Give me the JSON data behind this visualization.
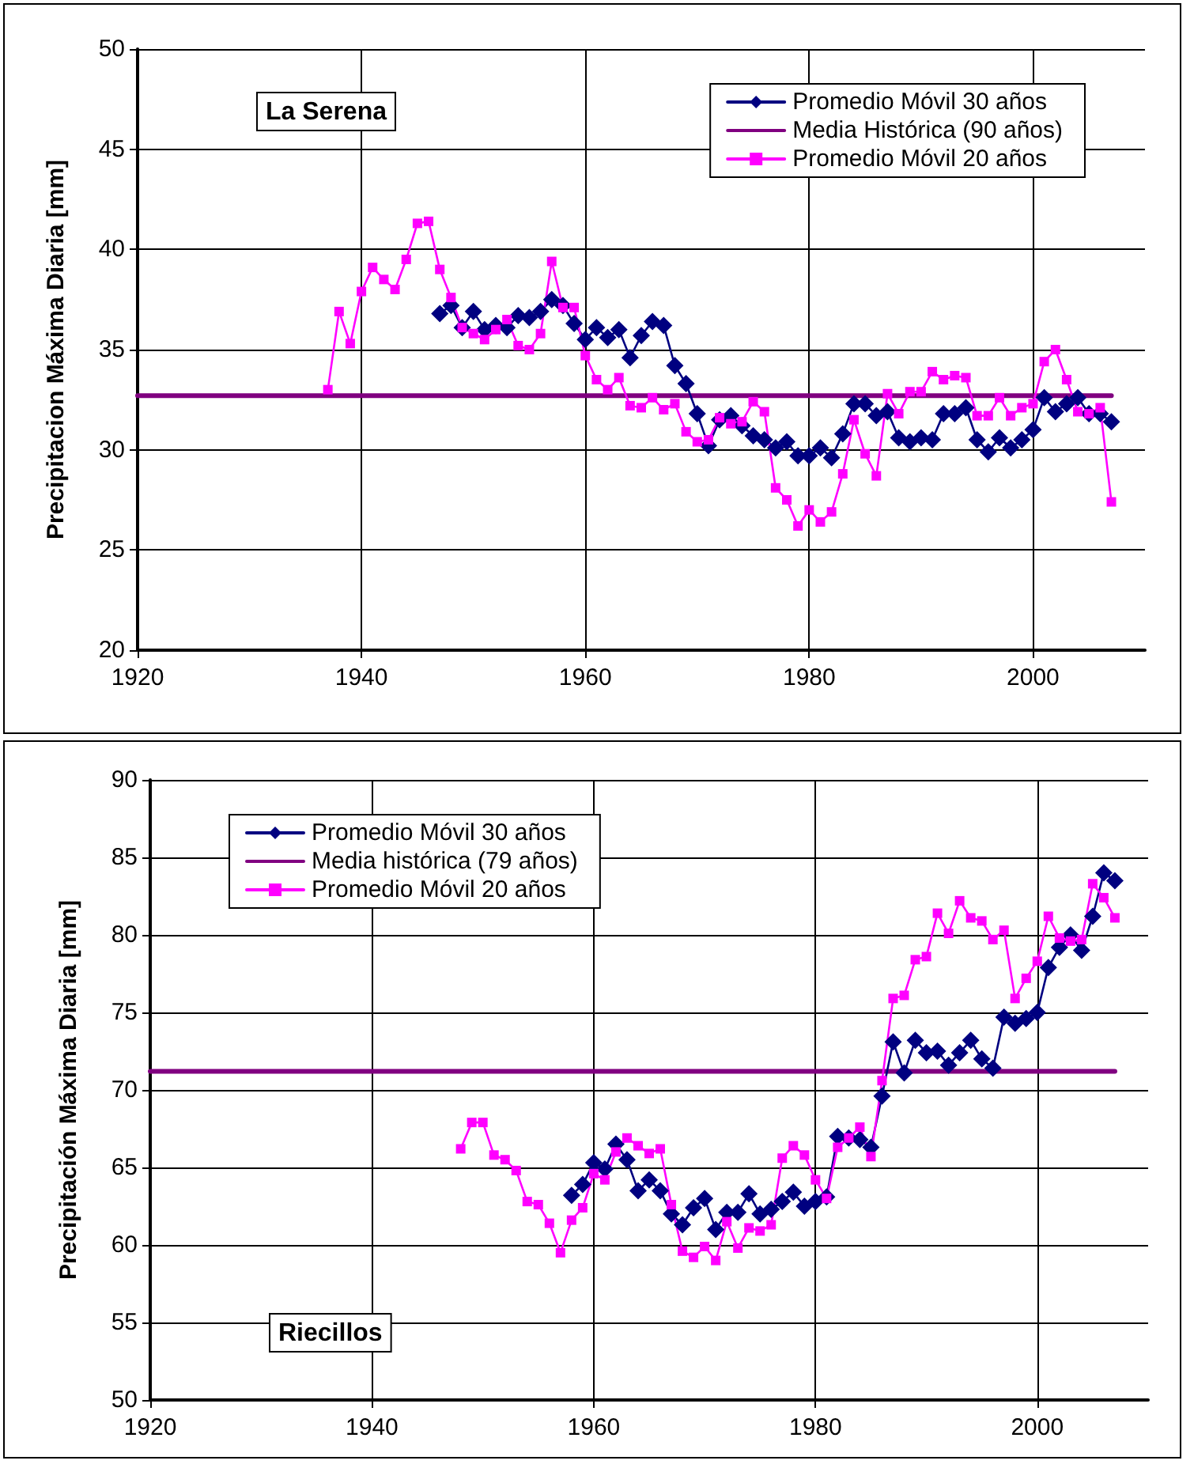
{
  "chart_data": [
    {
      "type": "line",
      "ylabel": "Precipitacion Máxima Diaria [mm]",
      "annotations": [
        "La Serena"
      ],
      "xlim": [
        1920,
        2010
      ],
      "xticks": [
        1920,
        1940,
        1960,
        1980,
        2000
      ],
      "ylim": [
        20,
        50
      ],
      "yticks": [
        20,
        25,
        30,
        35,
        40,
        45,
        50
      ],
      "grid": true,
      "legend": "top right",
      "series": [
        {
          "name": "Promedio Móvil 30 años",
          "color": "#000080",
          "marker": "diamond",
          "x": [
            1947,
            1948,
            1949,
            1950,
            1951,
            1952,
            1953,
            1954,
            1955,
            1956,
            1957,
            1958,
            1959,
            1960,
            1961,
            1962,
            1963,
            1964,
            1965,
            1966,
            1967,
            1968,
            1969,
            1970,
            1971,
            1972,
            1973,
            1974,
            1975,
            1976,
            1977,
            1978,
            1979,
            1980,
            1981,
            1982,
            1983,
            1984,
            1985,
            1986,
            1987,
            1988,
            1989,
            1990,
            1991,
            1992,
            1993,
            1994,
            1995,
            1996,
            1997,
            1998,
            1999,
            2000,
            2001,
            2002,
            2003,
            2004,
            2005,
            2006,
            2007
          ],
          "values": [
            36.8,
            37.2,
            36.1,
            36.9,
            36.0,
            36.2,
            36.1,
            36.7,
            36.6,
            36.9,
            37.5,
            37.2,
            36.3,
            35.5,
            36.1,
            35.6,
            36.0,
            34.6,
            35.7,
            36.4,
            36.2,
            34.2,
            33.3,
            31.8,
            30.2,
            31.5,
            31.7,
            31.2,
            30.7,
            30.5,
            30.1,
            30.4,
            29.7,
            29.7,
            30.1,
            29.6,
            30.8,
            32.3,
            32.3,
            31.7,
            31.9,
            30.6,
            30.4,
            30.6,
            30.5,
            31.8,
            31.8,
            32.1,
            30.5,
            29.9,
            30.6,
            30.1,
            30.5,
            31.0,
            32.6,
            31.9,
            32.3,
            32.6,
            31.8,
            31.8,
            31.4
          ]
        },
        {
          "name": "Media Histórica (90 años)",
          "color": "#800080",
          "marker": "none",
          "x": [
            1920,
            2007
          ],
          "values": [
            32.7,
            32.7
          ]
        },
        {
          "name": "Promedio Móvil 20 años",
          "color": "#ff00ff",
          "marker": "square",
          "x": [
            1937,
            1938,
            1939,
            1940,
            1941,
            1942,
            1943,
            1944,
            1945,
            1946,
            1947,
            1948,
            1949,
            1950,
            1951,
            1952,
            1953,
            1954,
            1955,
            1956,
            1957,
            1958,
            1959,
            1960,
            1961,
            1962,
            1963,
            1964,
            1965,
            1966,
            1967,
            1968,
            1969,
            1970,
            1971,
            1972,
            1973,
            1974,
            1975,
            1976,
            1977,
            1978,
            1979,
            1980,
            1981,
            1982,
            1983,
            1984,
            1985,
            1986,
            1987,
            1988,
            1989,
            1990,
            1991,
            1992,
            1993,
            1994,
            1995,
            1996,
            1997,
            1998,
            1999,
            2000,
            2001,
            2002,
            2003,
            2004,
            2005,
            2006,
            2007
          ],
          "values": [
            33.0,
            36.9,
            35.3,
            37.9,
            39.1,
            38.5,
            38.0,
            39.5,
            41.3,
            41.4,
            39.0,
            37.6,
            36.1,
            35.8,
            35.5,
            36.0,
            36.5,
            35.2,
            35.0,
            35.8,
            39.4,
            37.1,
            37.1,
            34.7,
            33.5,
            33.0,
            33.6,
            32.2,
            32.1,
            32.6,
            32.0,
            32.3,
            30.9,
            30.4,
            30.5,
            31.6,
            31.3,
            31.4,
            32.4,
            31.9,
            28.1,
            27.5,
            26.2,
            27.0,
            26.4,
            26.9,
            28.8,
            31.5,
            29.8,
            28.7,
            32.8,
            31.8,
            32.9,
            32.9,
            33.9,
            33.5,
            33.7,
            33.6,
            31.7,
            31.7,
            32.6,
            31.7,
            32.1,
            32.3,
            34.4,
            35.0,
            33.5,
            31.9,
            31.8,
            32.1,
            27.4
          ]
        }
      ]
    },
    {
      "type": "line",
      "ylabel": "Precipitación Máxima Diaria [mm]",
      "annotations": [
        "Riecillos"
      ],
      "xlim": [
        1920,
        2010
      ],
      "xticks": [
        1920,
        1940,
        1960,
        1980,
        2000
      ],
      "ylim": [
        50,
        90
      ],
      "yticks": [
        50,
        55,
        60,
        65,
        70,
        75,
        80,
        85,
        90
      ],
      "grid": true,
      "legend": "top left",
      "series": [
        {
          "name": "Promedio Móvil 30 años",
          "color": "#000080",
          "marker": "diamond",
          "x": [
            1958,
            1959,
            1960,
            1961,
            1962,
            1963,
            1964,
            1965,
            1966,
            1967,
            1968,
            1969,
            1970,
            1971,
            1972,
            1973,
            1974,
            1975,
            1976,
            1977,
            1978,
            1979,
            1980,
            1981,
            1982,
            1983,
            1984,
            1985,
            1986,
            1987,
            1988,
            1989,
            1990,
            1991,
            1992,
            1993,
            1994,
            1995,
            1996,
            1997,
            1998,
            1999,
            2000,
            2001,
            2002,
            2003,
            2004,
            2005,
            2006,
            2007
          ],
          "values": [
            63.2,
            63.9,
            65.3,
            64.9,
            66.5,
            65.5,
            63.5,
            64.2,
            63.5,
            62.0,
            61.3,
            62.4,
            63.0,
            61.0,
            62.1,
            62.1,
            63.3,
            62.0,
            62.3,
            62.8,
            63.4,
            62.5,
            62.8,
            63.1,
            67.0,
            66.9,
            66.8,
            66.3,
            69.6,
            73.1,
            71.1,
            73.2,
            72.4,
            72.5,
            71.6,
            72.4,
            73.2,
            72.0,
            71.4,
            74.7,
            74.3,
            74.6,
            75.0,
            77.9,
            79.2,
            80.0,
            79.0,
            81.2,
            84.0,
            83.5
          ]
        },
        {
          "name": "Media histórica (79 años)",
          "color": "#800080",
          "marker": "none",
          "x": [
            1920,
            2007
          ],
          "values": [
            71.2,
            71.2
          ]
        },
        {
          "name": "Promedio Móvil 20 años",
          "color": "#ff00ff",
          "marker": "square",
          "x": [
            1948,
            1949,
            1950,
            1951,
            1952,
            1953,
            1954,
            1955,
            1956,
            1957,
            1958,
            1959,
            1960,
            1961,
            1962,
            1963,
            1964,
            1965,
            1966,
            1967,
            1968,
            1969,
            1970,
            1971,
            1972,
            1973,
            1974,
            1975,
            1976,
            1977,
            1978,
            1979,
            1980,
            1981,
            1982,
            1983,
            1984,
            1985,
            1986,
            1987,
            1988,
            1989,
            1990,
            1991,
            1992,
            1993,
            1994,
            1995,
            1996,
            1997,
            1998,
            1999,
            2000,
            2001,
            2002,
            2003,
            2004,
            2005,
            2006,
            2007
          ],
          "values": [
            66.2,
            67.9,
            67.9,
            65.8,
            65.5,
            64.8,
            62.8,
            62.6,
            61.4,
            59.5,
            61.6,
            62.4,
            64.6,
            64.2,
            66.0,
            66.9,
            66.4,
            65.9,
            66.2,
            62.6,
            59.6,
            59.2,
            59.9,
            59.0,
            61.5,
            59.8,
            61.1,
            60.9,
            61.3,
            65.6,
            66.4,
            65.8,
            64.2,
            63.0,
            66.3,
            66.9,
            67.6,
            65.7,
            70.6,
            75.9,
            76.1,
            78.4,
            78.6,
            81.4,
            80.1,
            82.2,
            81.1,
            80.9,
            79.7,
            80.3,
            75.9,
            77.2,
            78.3,
            81.2,
            79.8,
            79.6,
            79.7,
            83.3,
            82.4,
            81.1
          ]
        }
      ]
    }
  ]
}
